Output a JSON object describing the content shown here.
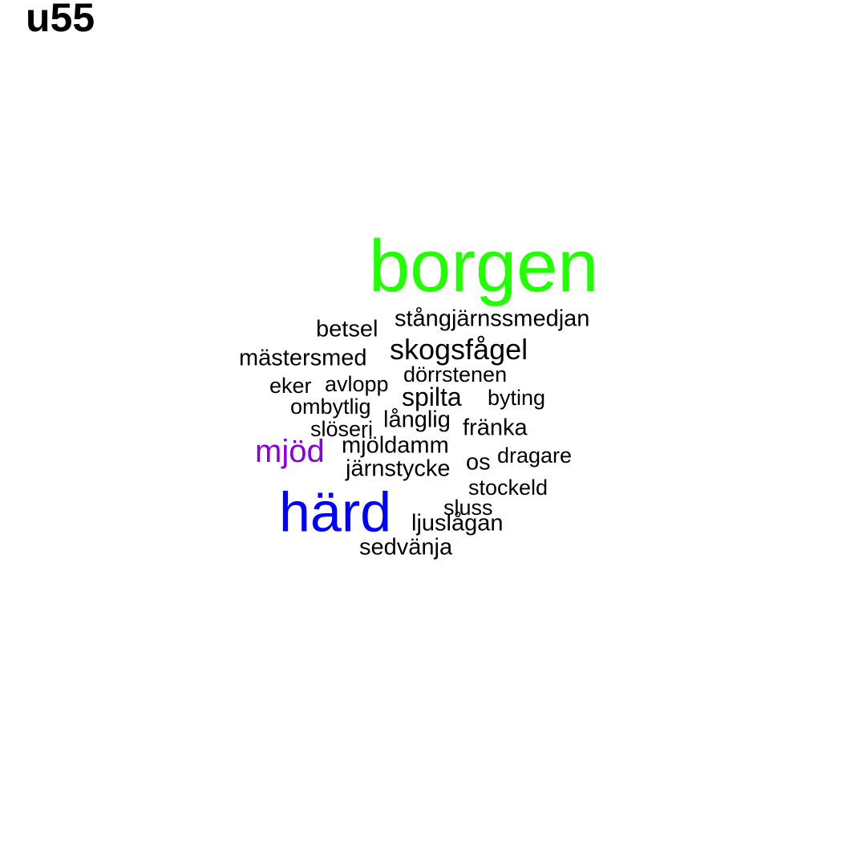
{
  "title": "u55",
  "colors": {
    "default": "#000000",
    "borgen": "#22ff00",
    "härd": "#0000ff",
    "mjöd": "#8a00e6"
  },
  "words": [
    {
      "text": "borgen"
    },
    {
      "text": "härd"
    },
    {
      "text": "mjöd"
    },
    {
      "text": "skogsfågel"
    },
    {
      "text": "spilta"
    },
    {
      "text": "stångjärnssmedjan"
    },
    {
      "text": "betsel"
    },
    {
      "text": "mästersmed"
    },
    {
      "text": "dörrstenen"
    },
    {
      "text": "eker"
    },
    {
      "text": "avlopp"
    },
    {
      "text": "byting"
    },
    {
      "text": "ombytlig"
    },
    {
      "text": "långlig"
    },
    {
      "text": "slöseri"
    },
    {
      "text": "fränka"
    },
    {
      "text": "mjöldamm"
    },
    {
      "text": "os"
    },
    {
      "text": "dragare"
    },
    {
      "text": "järnstycke"
    },
    {
      "text": "stockeld"
    },
    {
      "text": "sluss"
    },
    {
      "text": "ljuslågan"
    },
    {
      "text": "sedvänja"
    }
  ]
}
